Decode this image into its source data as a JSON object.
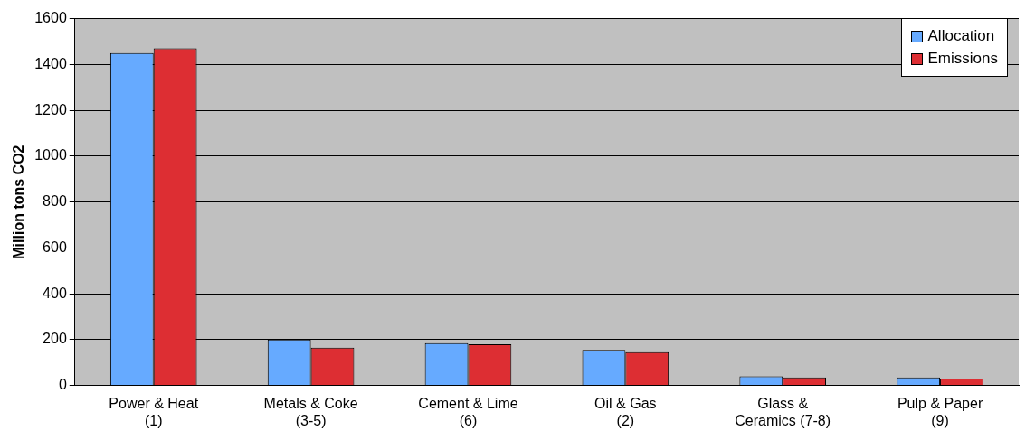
{
  "chart_data": {
    "type": "bar",
    "ylabel": "Million tons CO2",
    "categories": [
      "Power & Heat\n(1)",
      "Metals & Coke\n(3-5)",
      "Cement & Lime\n(6)",
      "Oil & Gas\n(2)",
      "Glass &\nCeramics (7-8)",
      "Pulp & Paper\n(9)"
    ],
    "series": [
      {
        "name": "Allocation",
        "color": "#66aaff",
        "values": [
          1450,
          200,
          185,
          155,
          40,
          35
        ]
      },
      {
        "name": "Emissions",
        "color": "#dd2e33",
        "values": [
          1470,
          165,
          180,
          145,
          35,
          30
        ]
      }
    ],
    "ylim": [
      0,
      1600
    ],
    "yticks": [
      0,
      200,
      400,
      600,
      800,
      1000,
      1200,
      1400,
      1600
    ],
    "grid": "y",
    "legend": "top right"
  }
}
